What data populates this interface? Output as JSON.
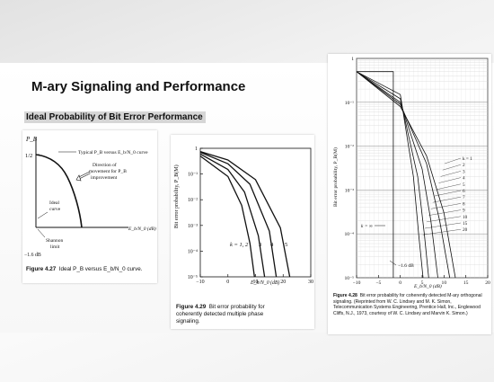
{
  "slide": {
    "title": "M-ary Signaling and Performance",
    "subtitle": "Ideal Probability of Bit Error Performance"
  },
  "fig427": {
    "ylabel": "P_B",
    "y_tick": "1/2",
    "curve_label": "Typical P_B versus E_b/N_0 curve",
    "arrow_label_1": "Direction of",
    "arrow_label_2": "movement for P_B",
    "arrow_label_3": "improvement",
    "ideal_1": "Ideal",
    "ideal_2": "curve",
    "xlabel": "E_b/N_0 (dB)",
    "shannon_1": "Shannon",
    "shannon_2": "limit",
    "x_tick": "−1.6 dB",
    "caption_label": "Figure 4.27",
    "caption_text": "Ideal P_B versus E_b/N_0 curve."
  },
  "fig429": {
    "ylabel": "Bit error probability, P_B(M)",
    "y_ticks": [
      "1",
      "10⁻¹",
      "10⁻²",
      "10⁻³",
      "10⁻⁴",
      "10⁻⁵"
    ],
    "x_ticks": [
      "−10",
      "0",
      "10",
      "20",
      "30"
    ],
    "xlabel": "E_b/N_0 (dB)",
    "k_label": "k = 1, 2",
    "k3": "3",
    "k4": "4",
    "k5": "5",
    "caption_label": "Figure 4.29",
    "caption_text": "Bit error probability for coherently detected multiple phase signaling."
  },
  "fig428": {
    "ylabel": "Bit error probability, P_B(M)",
    "y_ticks": [
      "1",
      "10⁻¹",
      "10⁻²",
      "10⁻³",
      "10⁻⁴",
      "10⁻⁵"
    ],
    "x_ticks": [
      "−10",
      "−5",
      "0",
      "5",
      "10",
      "15",
      "20"
    ],
    "xlabel": "E_b/N_0 (dB)",
    "k_values": [
      "k = 1",
      "2",
      "3",
      "4",
      "5",
      "6",
      "7",
      "8",
      "9",
      "10",
      "15",
      "20"
    ],
    "k_inf": "k = ∞",
    "shannon": "−1.6 dB",
    "caption_label": "Figure 4.28",
    "caption_text": "Bit error probability for coherently detected M-ary orthogonal signaling. (Reprinted from W. C. Lindsey and M. K. Simon, Telecommunication Systems Engineering, Prentice Hall, Inc., Englewood Cliffs, N.J., 1973, courtesy of W. C. Lindsey and Marvin K. Simon.)"
  },
  "chart_data": [
    {
      "type": "line",
      "title": "",
      "xlabel": "E_b/N_0 (dB)",
      "ylabel": "P_B",
      "series": [
        {
          "name": "Typical P_B versus E_b/N_0 curve",
          "x": [
            -1.6,
            2,
            6,
            10,
            14
          ],
          "y": [
            0.5,
            0.45,
            0.32,
            0.15,
            0.0
          ]
        },
        {
          "name": "Ideal curve",
          "x": [
            -1.6,
            -1.6,
            14
          ],
          "y": [
            0.5,
            0.0,
            0.0
          ]
        }
      ]
    },
    {
      "type": "line",
      "title": "",
      "xlabel": "E_b/N_0 (dB)",
      "ylabel": "Bit error probability, P_B(M)",
      "y_scale": "log",
      "xlim": [
        -10,
        30
      ],
      "ylim": [
        1e-05,
        1
      ],
      "series": [
        {
          "name": "k = 1, 2",
          "x": [
            -10,
            0,
            5,
            8,
            9.6
          ],
          "y": [
            0.5,
            0.08,
            0.006,
            0.0002,
            1e-05
          ]
        },
        {
          "name": "3",
          "x": [
            -10,
            0,
            6,
            11,
            13.3
          ],
          "y": [
            0.6,
            0.15,
            0.02,
            0.0004,
            1e-05
          ]
        },
        {
          "name": "4",
          "x": [
            -10,
            0,
            8,
            15,
            17.5
          ],
          "y": [
            0.7,
            0.25,
            0.04,
            0.0006,
            1e-05
          ]
        },
        {
          "name": "5",
          "x": [
            -10,
            0,
            10,
            19,
            22.4
          ],
          "y": [
            0.75,
            0.35,
            0.06,
            0.0008,
            1e-05
          ]
        }
      ]
    },
    {
      "type": "line",
      "title": "",
      "xlabel": "E_b/N_0 (dB)",
      "ylabel": "Bit error probability, P_B(M)",
      "y_scale": "log",
      "xlim": [
        -10,
        20
      ],
      "ylim": [
        1e-05,
        1
      ],
      "series": [
        {
          "name": "k = 1",
          "x": [
            -10,
            0,
            6,
            10,
            12.6
          ],
          "y": [
            0.5,
            0.08,
            0.006,
            0.0003,
            1e-05
          ]
        },
        {
          "name": "2",
          "x": [
            -10,
            0,
            6,
            9,
            11.3
          ],
          "y": [
            0.5,
            0.09,
            0.004,
            0.0002,
            1e-05
          ]
        },
        {
          "name": "5",
          "x": [
            -10,
            0,
            5,
            7,
            8.6
          ],
          "y": [
            0.5,
            0.1,
            0.003,
            0.0002,
            1e-05
          ]
        },
        {
          "name": "10",
          "x": [
            -10,
            0,
            4,
            5.5,
            6.5
          ],
          "y": [
            0.5,
            0.12,
            0.002,
            0.0001,
            1e-05
          ]
        },
        {
          "name": "20",
          "x": [
            -10,
            0,
            3,
            4.2,
            5.2
          ],
          "y": [
            0.5,
            0.15,
            0.002,
            0.0001,
            1e-05
          ]
        },
        {
          "name": "k = ∞",
          "x": [
            -10,
            -1.6,
            -1.6,
            -1.6
          ],
          "y": [
            0.5,
            0.5,
            0.001,
            1e-05
          ]
        }
      ]
    }
  ]
}
